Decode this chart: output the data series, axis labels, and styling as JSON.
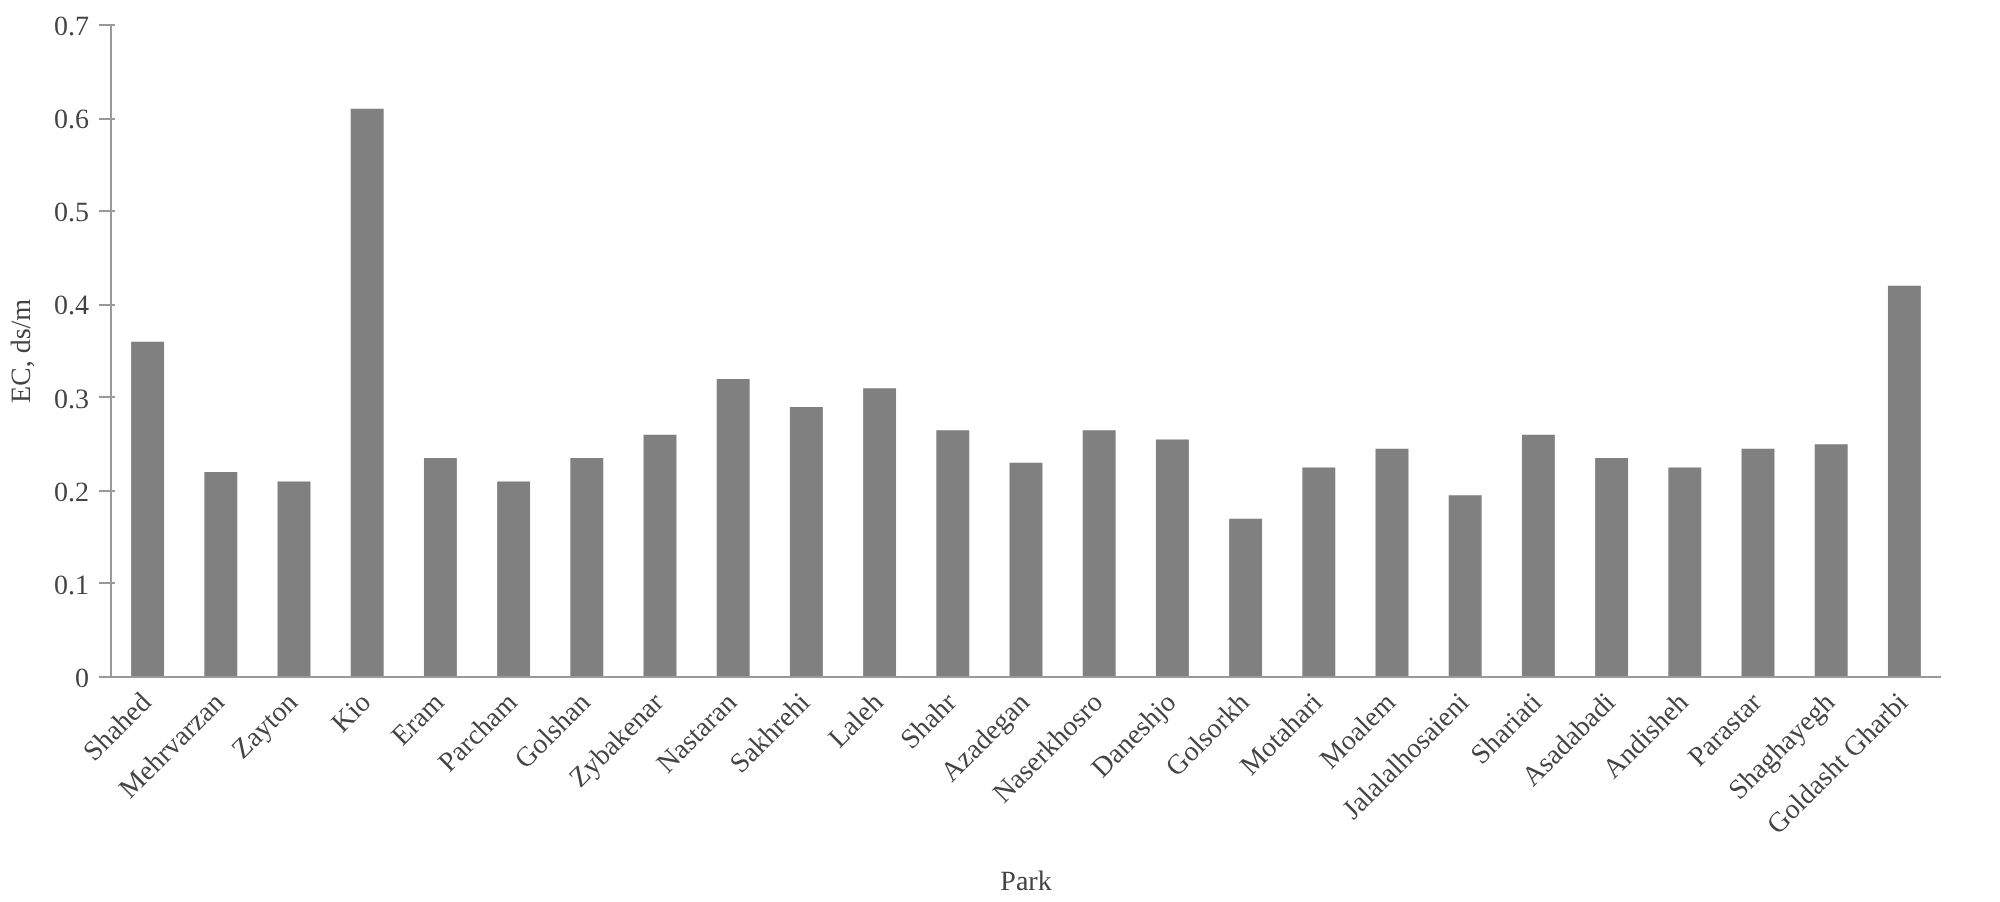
{
  "chart_data": {
    "type": "bar",
    "xlabel": "Park",
    "ylabel": "EC, ds/m",
    "categories": [
      "Shahed",
      "Mehrvarzan",
      "Zayton",
      "Kio",
      "Eram",
      "Parcham",
      "Golshan",
      "Zybakenar",
      "Nastaran",
      "Sakhrehi",
      "Laleh",
      "Shahr",
      "Azadegan",
      "Naserkhosro",
      "Daneshjo",
      "Golsorkh",
      "Motahari",
      "Moalem",
      "Jalalalhosaieni",
      "Shariati",
      "Asadabadi",
      "Andisheh",
      "Parastar",
      "Shaghayegh",
      "Goldasht Gharbi"
    ],
    "values": [
      0.36,
      0.22,
      0.21,
      0.61,
      0.235,
      0.21,
      0.235,
      0.26,
      0.32,
      0.29,
      0.31,
      0.265,
      0.23,
      0.265,
      0.255,
      0.17,
      0.225,
      0.245,
      0.195,
      0.26,
      0.235,
      0.225,
      0.245,
      0.25,
      0.42
    ],
    "color": "#808080",
    "ylim": [
      0,
      0.7
    ],
    "yticks": [
      0,
      0.1,
      0.2,
      0.3,
      0.4,
      0.5,
      0.6,
      0.7
    ],
    "grid": false
  }
}
